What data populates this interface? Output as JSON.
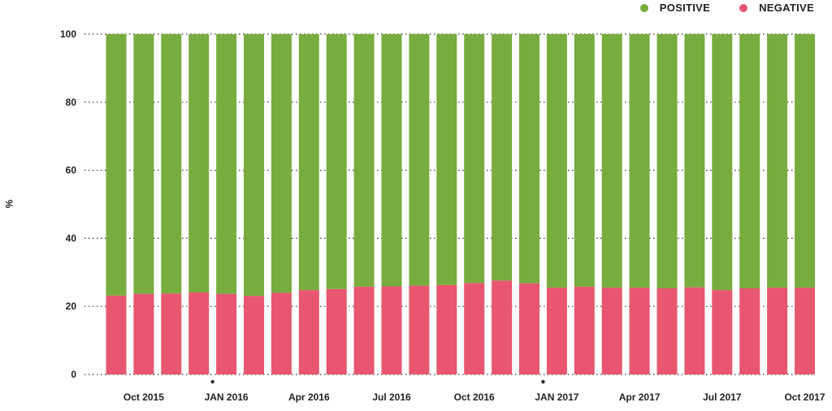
{
  "chart_data": {
    "type": "bar",
    "stacked": true,
    "ylabel": "%",
    "ylim": [
      0,
      100
    ],
    "yticks": [
      0,
      20,
      40,
      60,
      80,
      100
    ],
    "grid": true,
    "legend_position": "top-right",
    "categories": [
      "Sep 2015",
      "Oct 2015",
      "Nov 2015",
      "Dec 2015",
      "Jan 2016",
      "Feb 2016",
      "Mar 2016",
      "Apr 2016",
      "May 2016",
      "Jun 2016",
      "Jul 2016",
      "Aug 2016",
      "Sep 2016",
      "Oct 2016",
      "Nov 2016",
      "Dec 2016",
      "Jan 2017",
      "Feb 2017",
      "Mar 2017",
      "Apr 2017",
      "May 2017",
      "Jun 2017",
      "Jul 2017",
      "Aug 2017",
      "Sep 2017",
      "Oct 2017"
    ],
    "x_tick_labels": [
      {
        "label": "Oct 2015",
        "index": 1
      },
      {
        "label": "JAN 2016",
        "index": 4
      },
      {
        "label": "Apr 2016",
        "index": 7
      },
      {
        "label": "Jul 2016",
        "index": 10
      },
      {
        "label": "Oct 2016",
        "index": 13
      },
      {
        "label": "JAN 2017",
        "index": 16
      },
      {
        "label": "Apr 2017",
        "index": 19
      },
      {
        "label": "Jul 2017",
        "index": 22
      },
      {
        "label": "Oct 2017",
        "index": 25
      }
    ],
    "year_markers": [
      3.5,
      15.5
    ],
    "series": [
      {
        "name": "NEGATIVE",
        "color": "#e8566f",
        "values": [
          23.2,
          23.7,
          23.8,
          24.1,
          23.7,
          23.1,
          24.0,
          24.8,
          25.1,
          25.8,
          25.9,
          26.1,
          26.3,
          26.9,
          27.6,
          26.8,
          25.5,
          25.8,
          25.5,
          25.5,
          25.3,
          25.6,
          24.8,
          25.3,
          25.5,
          25.5
        ]
      },
      {
        "name": "POSITIVE",
        "color": "#77ad3e",
        "values": [
          76.8,
          76.3,
          76.2,
          75.9,
          76.3,
          76.9,
          76.0,
          75.2,
          74.9,
          74.2,
          74.1,
          73.9,
          73.7,
          73.1,
          72.4,
          73.2,
          74.5,
          74.2,
          74.5,
          74.5,
          74.7,
          74.4,
          75.2,
          74.7,
          74.5,
          74.5
        ]
      }
    ]
  },
  "legend": [
    {
      "label": "POSITIVE",
      "color": "#77ad3e"
    },
    {
      "label": "NEGATIVE",
      "color": "#e8566f"
    }
  ]
}
